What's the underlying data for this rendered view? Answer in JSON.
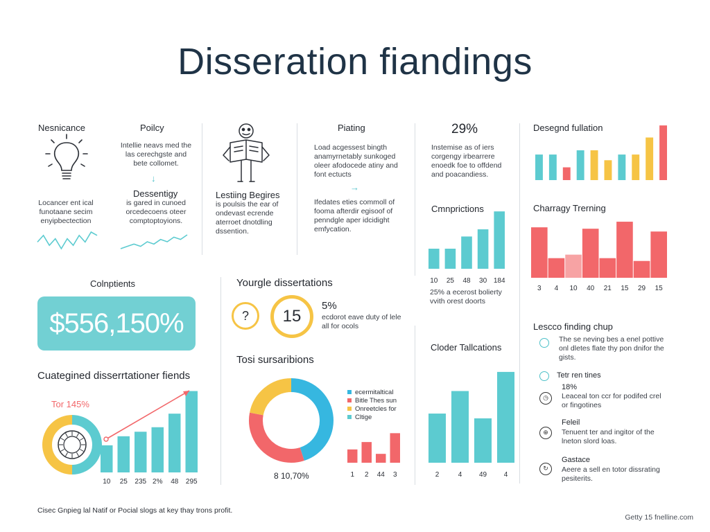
{
  "title": "Disseration fiandings",
  "panels": {
    "significance": {
      "heading": "Nesnicance",
      "text": "Locancer ent ical funotaane secim enyipbectection",
      "icon": "lightbulb-icon"
    },
    "policy": {
      "heading": "Poilcy",
      "text": "Intellie neavs med the las cerechgste and bete collomet.",
      "sub_heading": "Dessentigy",
      "sub_text": "is gared in cunoed orcedecoens oteer comptoptoyions."
    },
    "lesting": {
      "heading": "Lestiing Begires",
      "text": "is poulsis the ear of ondevast ecrende aterroet dnotdling dssention.",
      "icon": "person-reading-icon"
    },
    "plating": {
      "heading": "Piating",
      "text": "Load acgessest bingth anamyrnetably sunkoged oleer afodocede atiny and font ectucts",
      "text2": "Ifedates eties commoll of fooma afterdir egisoof of penndgle aper idcidight emfycation."
    },
    "percent": {
      "value": "29%",
      "text": "Instemise as of iers corgengy irbearrere enoedk foe to offdend and poacandiess."
    },
    "compriptions": {
      "heading": "Cmnprictions",
      "note": "25% a ecerost bolierty vvith orest doorts"
    },
    "design": {
      "heading": "Desegnd fullation"
    },
    "charragy": {
      "heading": "Charragy Trerning"
    },
    "components": {
      "heading": "Colnptients",
      "amount": "$556,150%"
    },
    "youngle": {
      "heading": "Yourgle dissertations",
      "ring_small": "?",
      "ring_big": "15",
      "pct": "5%",
      "text": "ecdorot eave duty of lele all for ocols"
    },
    "sursaribions": {
      "heading": "Tosi sursaribions",
      "donut_label": "8 10,70%",
      "legend": [
        "ecermitaltical",
        "Bitle Thes sun",
        "Onreetcles for",
        "Cltige"
      ]
    },
    "clocker": {
      "heading": "Cloder Tallcations"
    },
    "categined": {
      "heading": "Cuategined disserrtationer fiends",
      "trend_label": "Tor 145%"
    },
    "lescco": {
      "heading": "Lescco finding chup",
      "items": [
        {
          "title": "",
          "text": "The se neving bes a enel pottive onl dletes flate thy pon dnifor the gists.",
          "icon": "circle-icon"
        },
        {
          "title": "Tetr ren tines",
          "text": "",
          "icon": "circle-icon"
        },
        {
          "title": "18%",
          "text": "Leaceal ton ccr for podifed crel or fingotines",
          "icon": "clock-icon"
        },
        {
          "title": "Feleil",
          "text": "Tenuent ter and ingitor of the lneton slord loas.",
          "icon": "globe-icon"
        },
        {
          "title": "Gastace",
          "text": "Aeere a sell en totor dissrating pesiterits.",
          "icon": "refresh-icon"
        }
      ]
    }
  },
  "footer": {
    "left": "Cisec Gnpieg lal Natif or Pocial slogs at key thay trons profit.",
    "right": "Getty 15 fnelline.com"
  },
  "colors": {
    "teal": "#5ccbd0",
    "coral": "#f2676a",
    "yellow": "#f6c445",
    "blue": "#36b7e0",
    "navy": "#1f3346"
  },
  "chart_data": [
    {
      "type": "line",
      "name": "significance-sparkline",
      "values": [
        4,
        6,
        3,
        5,
        2,
        5,
        3,
        6,
        4,
        7,
        6
      ]
    },
    {
      "type": "line",
      "name": "policy-sparkline",
      "values": [
        2,
        3,
        4,
        3,
        5,
        4,
        6,
        5,
        7,
        6,
        8
      ]
    },
    {
      "type": "bar",
      "name": "compriptions",
      "categories": [
        "10",
        "25",
        "48",
        "30",
        "184"
      ],
      "values": [
        28,
        28,
        45,
        55,
        80
      ],
      "ylim": [
        0,
        85
      ]
    },
    {
      "type": "bar",
      "name": "design",
      "values": [
        36,
        36,
        18,
        42,
        42,
        28,
        36,
        36,
        60,
        77
      ],
      "colors": [
        "#5ccbd0",
        "#5ccbd0",
        "#f2676a",
        "#5ccbd0",
        "#f6c445",
        "#f6c445",
        "#5ccbd0",
        "#f6c445",
        "#f6c445",
        "#f2676a"
      ],
      "ylim": [
        0,
        80
      ]
    },
    {
      "type": "bar",
      "name": "charragy",
      "categories": [
        "3",
        "4",
        "10",
        "40",
        "21",
        "15",
        "29",
        "15"
      ],
      "values": [
        72,
        28,
        33,
        70,
        28,
        80,
        24,
        66
      ],
      "ylim": [
        0,
        85
      ]
    },
    {
      "type": "bar",
      "name": "sursaribions-mini",
      "categories": [
        "1",
        "2",
        "44",
        "3"
      ],
      "values": [
        18,
        28,
        12,
        40
      ],
      "ylim": [
        0,
        45
      ]
    },
    {
      "type": "bar",
      "name": "clocker",
      "categories": [
        "2",
        "4",
        "49",
        "4"
      ],
      "values": [
        72,
        105,
        65,
        133
      ],
      "ylim": [
        0,
        140
      ]
    },
    {
      "type": "bar",
      "name": "categined",
      "categories": [
        "10",
        "25",
        "235",
        "2%",
        "48",
        "295"
      ],
      "values": [
        30,
        40,
        45,
        50,
        65,
        90
      ],
      "ylim": [
        0,
        95
      ]
    },
    {
      "type": "pie",
      "name": "sursaribions-donut",
      "values": [
        45,
        33,
        22
      ],
      "colors": [
        "#36b7e0",
        "#f2676a",
        "#f6c445"
      ]
    },
    {
      "type": "pie",
      "name": "categined-donut",
      "values": [
        50,
        50
      ],
      "colors": [
        "#5ccbd0",
        "#f6c445"
      ]
    }
  ]
}
